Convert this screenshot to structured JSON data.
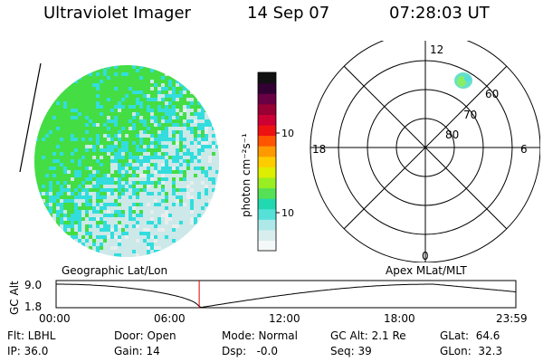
{
  "header": {
    "instrument": "Ultraviolet Imager",
    "date": "14 Sep 07",
    "time": "07:28:03 UT"
  },
  "colorbar": {
    "label": "photon cm⁻²s⁻¹",
    "ticks": [
      {
        "label": "100",
        "value": 100
      },
      {
        "label": "10",
        "value": 10
      }
    ]
  },
  "polar_plot": {
    "mlt_labels": {
      "top": "12",
      "bottom": "0",
      "left": "18",
      "right": "6"
    },
    "lat_labels": [
      "60",
      "70",
      "80"
    ]
  },
  "orbit_plot": {
    "left_title": "Geographic Lat/Lon",
    "right_title": "Apex MLat/MLT",
    "y_axis_label": "GC Alt",
    "y_ticks": [
      "9.0",
      "1.8"
    ],
    "x_ticks": [
      "00:00",
      "06:00",
      "12:00",
      "18:00",
      "23:59"
    ],
    "current_time_hours": 7.47
  },
  "info": {
    "flt": "Flt: LBHL",
    "door": "Door: Open",
    "mode": "Mode: Normal",
    "gc_alt": "GC Alt: 2.1 Re",
    "glat": "GLat:  64.6",
    "ip": "IP: 36.0",
    "gain": "Gain: 14",
    "dsp": "Dsp:   -0.0",
    "seq": "Seq: 39",
    "glon": "GLon:  32.3"
  },
  "colors": {
    "green": "#44dd44",
    "cyan": "#33dddd",
    "pale": "#cce8e8",
    "cursor": "#dd0000"
  }
}
